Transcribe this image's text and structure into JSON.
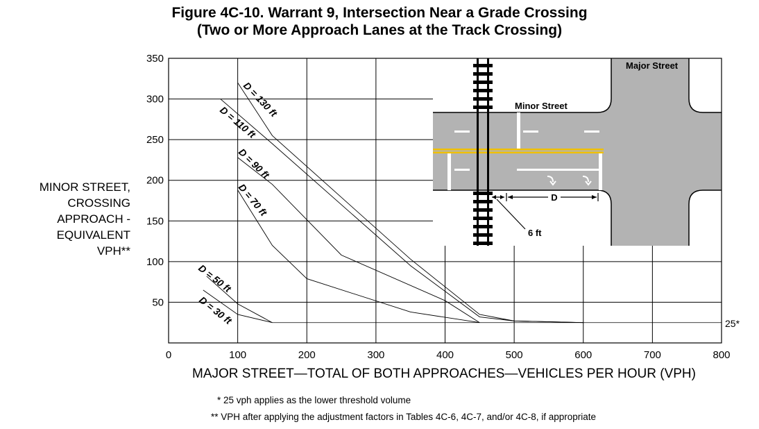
{
  "chart_data": {
    "type": "line",
    "title": "Figure 4C-10.  Warrant 9, Intersection Near a Grade Crossing",
    "subtitle": "(Two or More Approach Lanes at the Track Crossing)",
    "xlabel": "MAJOR STREET—TOTAL OF BOTH APPROACHES—VEHICLES PER HOUR (VPH)",
    "ylabel_lines": [
      "MINOR STREET,",
      "CROSSING",
      "APPROACH -",
      "EQUIVALENT",
      "VPH**"
    ],
    "xlim": [
      0,
      800
    ],
    "ylim": [
      0,
      350
    ],
    "xticks": [
      0,
      100,
      200,
      300,
      400,
      500,
      600,
      700,
      800
    ],
    "yticks": [
      50,
      100,
      150,
      200,
      250,
      300,
      350
    ],
    "grid": true,
    "threshold": {
      "y": 25,
      "label": "25*"
    },
    "series": [
      {
        "name": "D = 130 ft",
        "x": [
          100,
          150,
          350,
          450,
          500,
          600
        ],
        "y": [
          320,
          255,
          103,
          35,
          27,
          25
        ]
      },
      {
        "name": "D = 110 ft",
        "x": [
          75,
          150,
          350,
          450,
          500,
          600
        ],
        "y": [
          300,
          245,
          95,
          32,
          27,
          25
        ]
      },
      {
        "name": "D = 90 ft",
        "x": [
          100,
          150,
          250,
          400,
          450
        ],
        "y": [
          228,
          195,
          108,
          52,
          25
        ]
      },
      {
        "name": "D = 70 ft",
        "x": [
          100,
          150,
          200,
          350,
          450
        ],
        "y": [
          188,
          120,
          79,
          38,
          25
        ]
      },
      {
        "name": "D = 50 ft",
        "x": [
          55,
          100,
          150
        ],
        "y": [
          82,
          48,
          25
        ]
      },
      {
        "name": "D = 30 ft",
        "x": [
          50,
          100,
          150
        ],
        "y": [
          65,
          35,
          25
        ]
      }
    ]
  },
  "inset": {
    "major_street_label": "Major  Street",
    "minor_street_label": "Minor Street",
    "distance_label": "D",
    "offset_label": "6 ft"
  },
  "footnotes": {
    "one": "*  25 vph applies as the lower threshold volume",
    "two": "**  VPH after applying the adjustment factors in Tables 4C-6, 4C-7, and/or 4C-8, if appropriate"
  }
}
